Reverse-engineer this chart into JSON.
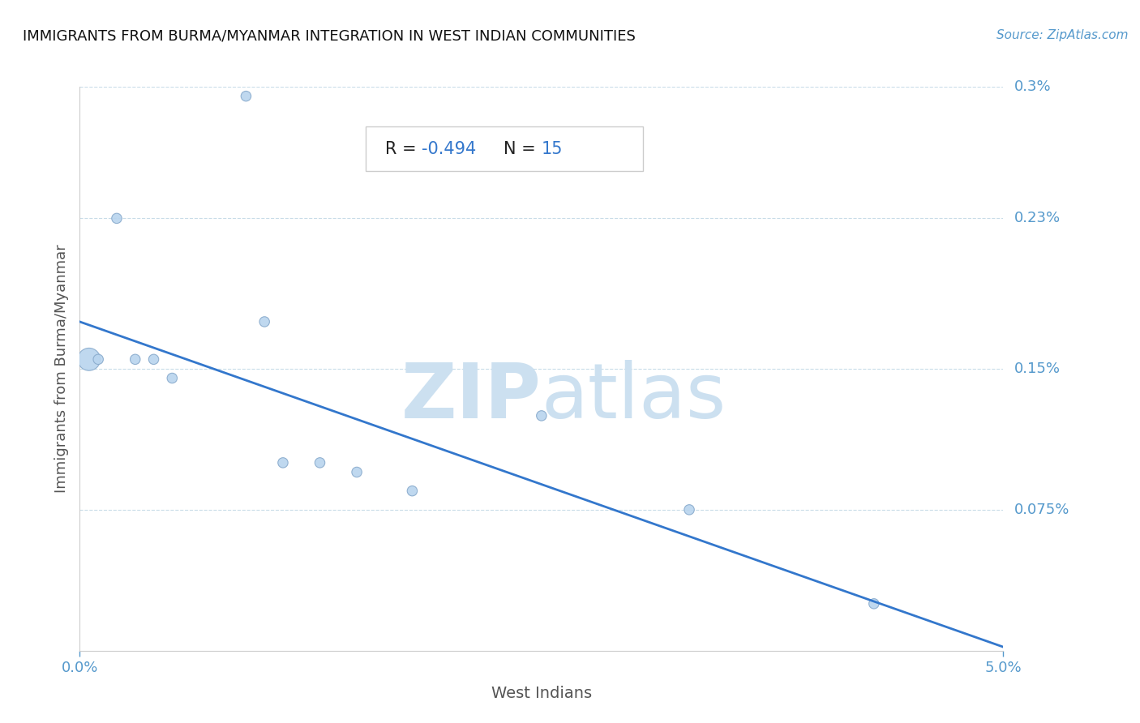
{
  "title": "IMMIGRANTS FROM BURMA/MYANMAR INTEGRATION IN WEST INDIAN COMMUNITIES",
  "source": "Source: ZipAtlas.com",
  "xlabel": "West Indians",
  "ylabel": "Immigrants from Burma/Myanmar",
  "R": -0.494,
  "N": 15,
  "xlim": [
    0.0,
    0.05
  ],
  "ylim": [
    0.0,
    0.003
  ],
  "xtick_labels": [
    "0.0%",
    "5.0%"
  ],
  "ytick_labels": [
    "0.075%",
    "0.15%",
    "0.23%",
    "0.3%"
  ],
  "ytick_values": [
    0.00075,
    0.0015,
    0.0023,
    0.003
  ],
  "scatter_x": [
    0.0005,
    0.001,
    0.002,
    0.003,
    0.004,
    0.005,
    0.009,
    0.01,
    0.011,
    0.013,
    0.015,
    0.018,
    0.025,
    0.033,
    0.043
  ],
  "scatter_y": [
    0.00155,
    0.00155,
    0.0023,
    0.00155,
    0.00155,
    0.00145,
    0.00295,
    0.00175,
    0.001,
    0.001,
    0.00095,
    0.00085,
    0.00125,
    0.00075,
    0.00025
  ],
  "scatter_sizes": [
    400,
    80,
    80,
    80,
    80,
    80,
    80,
    80,
    80,
    80,
    80,
    80,
    80,
    80,
    80
  ],
  "scatter_color": "#b8d4ee",
  "scatter_edgecolor": "#88aacc",
  "line_color": "#3377cc",
  "line_x_start": 0.0,
  "line_x_end": 0.05,
  "line_y_start": 0.00175,
  "line_y_end": 2e-05,
  "grid_color": "#c8dce8",
  "background_color": "#ffffff",
  "watermark_zip": "ZIP",
  "watermark_atlas": "atlas",
  "watermark_color": "#cce0f0",
  "title_color": "#111111",
  "axis_label_color": "#555555",
  "tick_label_color": "#5599cc",
  "stat_label_color": "#222222",
  "stat_value_color": "#3377cc",
  "stat_R_label": "R = ",
  "stat_R_value": "-0.494",
  "stat_N_label": "N = ",
  "stat_N_value": "15"
}
